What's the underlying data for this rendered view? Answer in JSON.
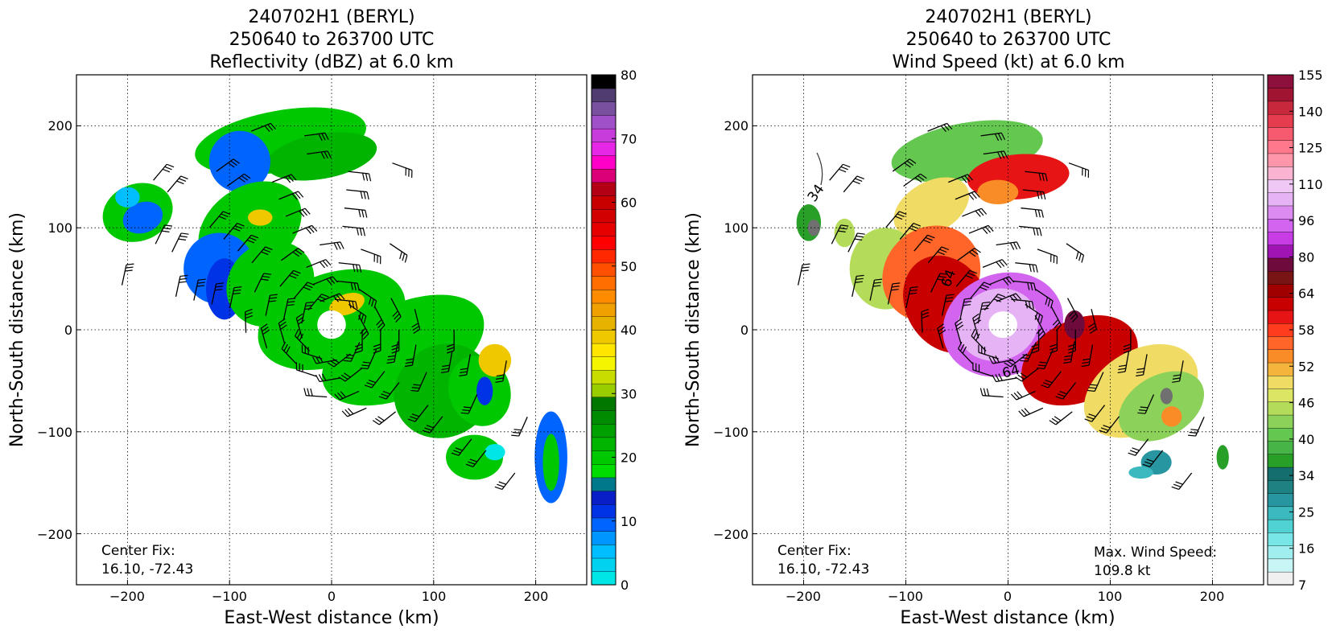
{
  "chart_data": [
    {
      "type": "heatmap",
      "title_lines": [
        "240702H1 (BERYL)",
        "250640 to 263700 UTC",
        "Reflectivity (dBZ) at 6.0 km"
      ],
      "xlabel": "East-West distance (km)",
      "ylabel": "North-South distance (km)",
      "xlim": [
        -250,
        250
      ],
      "ylim": [
        -250,
        250
      ],
      "xticks": [
        "−200",
        "−100",
        "0",
        "100",
        "200"
      ],
      "yticks": [
        "200",
        "100",
        "0",
        "−100",
        "−200"
      ],
      "grid": true,
      "annotations": {
        "center_fix_label": "Center Fix:",
        "center_fix_value": "16.10, -72.43"
      },
      "colorbar": {
        "vmin": 0,
        "vmax": 80,
        "tick_labels": [
          "0",
          "10",
          "20",
          "30",
          "40",
          "50",
          "60",
          "70",
          "80"
        ],
        "colors": [
          "#00e6e6",
          "#00d2f0",
          "#00beff",
          "#0096ff",
          "#0064ff",
          "#0032e6",
          "#0a1ec8",
          "#00788c",
          "#00dc00",
          "#00c800",
          "#00b400",
          "#00a000",
          "#008c00",
          "#007800",
          "#9acd00",
          "#c8dc00",
          "#f5f500",
          "#ffe600",
          "#f0c800",
          "#e6b400",
          "#f0a000",
          "#ff8c00",
          "#ff6e00",
          "#ff5000",
          "#ff2800",
          "#ff0000",
          "#e60000",
          "#d20000",
          "#c80000",
          "#b40014",
          "#dc0078",
          "#ff00c8",
          "#e628e6",
          "#c83cdc",
          "#a050c8",
          "#7850a0",
          "#503c6e",
          "#000000"
        ]
      },
      "blobs": [
        {
          "x": -190,
          "y": 115,
          "rx": 35,
          "ry": 28,
          "rot": -20,
          "c": "#00c800"
        },
        {
          "x": -185,
          "y": 110,
          "rx": 20,
          "ry": 15,
          "rot": -20,
          "c": "#0064ff"
        },
        {
          "x": -200,
          "y": 130,
          "rx": 12,
          "ry": 10,
          "rot": 0,
          "c": "#00beff"
        },
        {
          "x": -50,
          "y": 185,
          "rx": 85,
          "ry": 30,
          "rot": -10,
          "c": "#00c800"
        },
        {
          "x": -10,
          "y": 170,
          "rx": 55,
          "ry": 22,
          "rot": -10,
          "c": "#00b400"
        },
        {
          "x": -90,
          "y": 165,
          "rx": 30,
          "ry": 30,
          "rot": 0,
          "c": "#0064ff"
        },
        {
          "x": -80,
          "y": 100,
          "rx": 55,
          "ry": 40,
          "rot": -35,
          "c": "#00c800"
        },
        {
          "x": -110,
          "y": 60,
          "rx": 35,
          "ry": 35,
          "rot": 0,
          "c": "#0064ff"
        },
        {
          "x": -105,
          "y": 40,
          "rx": 18,
          "ry": 30,
          "rot": 0,
          "c": "#0032e6"
        },
        {
          "x": -60,
          "y": 45,
          "rx": 45,
          "ry": 40,
          "rot": -40,
          "c": "#00c800"
        },
        {
          "x": 0,
          "y": 10,
          "rx": 75,
          "ry": 45,
          "rot": -20,
          "c": "#00c800"
        },
        {
          "x": 70,
          "y": -20,
          "rx": 85,
          "ry": 45,
          "rot": -25,
          "c": "#00c800"
        },
        {
          "x": 110,
          "y": -60,
          "rx": 50,
          "ry": 45,
          "rot": -30,
          "c": "#00b400"
        },
        {
          "x": 145,
          "y": -60,
          "rx": 30,
          "ry": 35,
          "rot": -20,
          "c": "#00c800"
        },
        {
          "x": 160,
          "y": -30,
          "rx": 16,
          "ry": 16,
          "rot": 0,
          "c": "#f0c800"
        },
        {
          "x": 150,
          "y": -60,
          "rx": 8,
          "ry": 14,
          "rot": 0,
          "c": "#0032e6"
        },
        {
          "x": 140,
          "y": -125,
          "rx": 28,
          "ry": 22,
          "rot": 0,
          "c": "#00c800"
        },
        {
          "x": 160,
          "y": -120,
          "rx": 10,
          "ry": 8,
          "rot": 0,
          "c": "#00e6e6"
        },
        {
          "x": 215,
          "y": -125,
          "rx": 16,
          "ry": 45,
          "rot": 0,
          "c": "#0064ff"
        },
        {
          "x": 215,
          "y": -130,
          "rx": 8,
          "ry": 28,
          "rot": 0,
          "c": "#00c800"
        },
        {
          "x": 15,
          "y": 25,
          "rx": 18,
          "ry": 10,
          "rot": -20,
          "c": "#f0c800"
        },
        {
          "x": -70,
          "y": 110,
          "rx": 12,
          "ry": 8,
          "rot": 0,
          "c": "#f0c800"
        },
        {
          "x": 0,
          "y": 5,
          "rx": 14,
          "ry": 14,
          "rot": 0,
          "c": "#ffffff"
        }
      ]
    },
    {
      "type": "heatmap",
      "title_lines": [
        "240702H1 (BERYL)",
        "250640 to 263700 UTC",
        "Wind Speed (kt) at 6.0 km"
      ],
      "xlabel": "East-West distance (km)",
      "ylabel": "North-South distance (km)",
      "xlim": [
        -250,
        250
      ],
      "ylim": [
        -250,
        250
      ],
      "xticks": [
        "−200",
        "−100",
        "0",
        "100",
        "200"
      ],
      "yticks": [
        "200",
        "100",
        "0",
        "−100",
        "−200"
      ],
      "grid": true,
      "annotations": {
        "center_fix_label": "Center Fix:",
        "center_fix_value": "16.10, -72.43",
        "max_wind_label": "Max. Wind Speed:",
        "max_wind_value": "109.8 kt",
        "contour_labels": [
          "34",
          "64",
          "64"
        ]
      },
      "colorbar": {
        "vmin": 7,
        "vmax": 155,
        "tick_labels": [
          "7",
          "16",
          "25",
          "34",
          "40",
          "46",
          "52",
          "58",
          "64",
          "80",
          "96",
          "110",
          "125",
          "140",
          "155"
        ],
        "colors": [
          "#f0f0f0",
          "#c8f5f5",
          "#a0eeee",
          "#78e6e6",
          "#50d2d2",
          "#3cb9be",
          "#2896a0",
          "#1e8282",
          "#146e6e",
          "#28a028",
          "#46b446",
          "#64c850",
          "#8cd25a",
          "#b4dc5a",
          "#dce664",
          "#f0dc64",
          "#f5b43c",
          "#fa8c28",
          "#ff6428",
          "#ff3c1e",
          "#e61414",
          "#c80000",
          "#a00000",
          "#781414",
          "#6e0a3c",
          "#a014b4",
          "#c83ce6",
          "#d264f0",
          "#dc8cf0",
          "#e6b4f5",
          "#f0c8f5",
          "#fab4d2",
          "#ff96aa",
          "#ff788c",
          "#f55a6e",
          "#e63c50",
          "#c8283c",
          "#a01432",
          "#8c0f3c"
        ]
      },
      "blobs": [
        {
          "x": -195,
          "y": 105,
          "rx": 12,
          "ry": 18,
          "rot": 0,
          "c": "#28a028"
        },
        {
          "x": -190,
          "y": 100,
          "rx": 6,
          "ry": 8,
          "rot": 0,
          "c": "#707070"
        },
        {
          "x": -160,
          "y": 95,
          "rx": 10,
          "ry": 14,
          "rot": 0,
          "c": "#b4dc5a"
        },
        {
          "x": -40,
          "y": 175,
          "rx": 75,
          "ry": 28,
          "rot": -10,
          "c": "#64c850"
        },
        {
          "x": 10,
          "y": 150,
          "rx": 50,
          "ry": 22,
          "rot": -5,
          "c": "#e61414"
        },
        {
          "x": -10,
          "y": 135,
          "rx": 20,
          "ry": 12,
          "rot": 0,
          "c": "#fa8c28"
        },
        {
          "x": -75,
          "y": 120,
          "rx": 40,
          "ry": 25,
          "rot": -30,
          "c": "#f0dc64"
        },
        {
          "x": -120,
          "y": 60,
          "rx": 35,
          "ry": 40,
          "rot": 0,
          "c": "#b4dc5a"
        },
        {
          "x": -75,
          "y": 55,
          "rx": 50,
          "ry": 45,
          "rot": -40,
          "c": "#ff6428"
        },
        {
          "x": -60,
          "y": 25,
          "rx": 40,
          "ry": 50,
          "rot": -30,
          "c": "#c80000"
        },
        {
          "x": -5,
          "y": 5,
          "rx": 60,
          "ry": 50,
          "rot": -20,
          "c": "#d264f0"
        },
        {
          "x": -10,
          "y": 5,
          "rx": 40,
          "ry": 35,
          "rot": -20,
          "c": "#e6b4f5"
        },
        {
          "x": -5,
          "y": 5,
          "rx": 14,
          "ry": 13,
          "rot": 0,
          "c": "#ffffff"
        },
        {
          "x": 70,
          "y": -30,
          "rx": 60,
          "ry": 40,
          "rot": -25,
          "c": "#c80000"
        },
        {
          "x": 65,
          "y": 5,
          "rx": 10,
          "ry": 14,
          "rot": 0,
          "c": "#6e0a3c"
        },
        {
          "x": 130,
          "y": -60,
          "rx": 60,
          "ry": 40,
          "rot": -30,
          "c": "#f0dc64"
        },
        {
          "x": 150,
          "y": -75,
          "rx": 45,
          "ry": 30,
          "rot": -30,
          "c": "#8cd25a"
        },
        {
          "x": 160,
          "y": -85,
          "rx": 10,
          "ry": 10,
          "rot": 0,
          "c": "#fa8c28"
        },
        {
          "x": 155,
          "y": -65,
          "rx": 6,
          "ry": 8,
          "rot": 0,
          "c": "#707070"
        },
        {
          "x": 145,
          "y": -130,
          "rx": 15,
          "ry": 12,
          "rot": 0,
          "c": "#2896a0"
        },
        {
          "x": 210,
          "y": -125,
          "rx": 6,
          "ry": 12,
          "rot": 0,
          "c": "#28a028"
        },
        {
          "x": 130,
          "y": -140,
          "rx": 12,
          "ry": 6,
          "rot": 0,
          "c": "#3cb9be"
        }
      ]
    }
  ]
}
